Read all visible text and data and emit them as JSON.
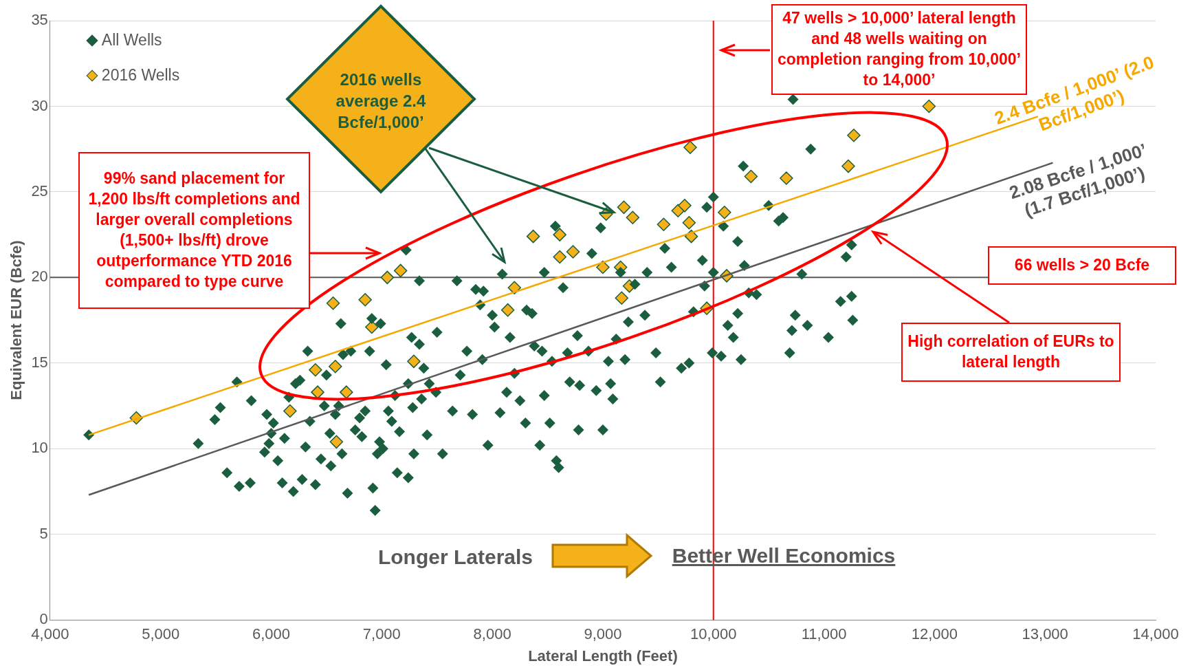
{
  "chart_data": {
    "type": "scatter",
    "xlabel": "Lateral Length (Feet)",
    "ylabel": "Equivalent EUR (Bcfe)",
    "xlim": [
      4000,
      14000
    ],
    "xticks": [
      {
        "value": 4000,
        "label": "4,000"
      },
      {
        "value": 5000,
        "label": "5,000"
      },
      {
        "value": 6000,
        "label": "6,000"
      },
      {
        "value": 7000,
        "label": "7,000"
      },
      {
        "value": 8000,
        "label": "8,000"
      },
      {
        "value": 9000,
        "label": "9,000"
      },
      {
        "value": 10000,
        "label": "10,000"
      },
      {
        "value": 11000,
        "label": "11,000"
      },
      {
        "value": 12000,
        "label": "12,000"
      },
      {
        "value": 13000,
        "label": "13,000"
      },
      {
        "value": 14000,
        "label": "14,000"
      }
    ],
    "ylim": [
      0,
      35
    ],
    "yticks": [
      0,
      5,
      10,
      15,
      20,
      25,
      30,
      35
    ],
    "grid": "y",
    "legend": "top left",
    "marker": "diamond",
    "series": [
      {
        "name": "All Wells",
        "color": "#1b5e3f",
        "x": [
          4350,
          5340,
          5490,
          5540,
          5600,
          5690,
          5710,
          5810,
          5820,
          5940,
          5960,
          5980,
          6000,
          6020,
          6060,
          6100,
          6120,
          6160,
          6200,
          6220,
          6260,
          6280,
          6310,
          6350,
          6330,
          6400,
          6450,
          6480,
          6500,
          6530,
          6540,
          6580,
          6610,
          6630,
          6640,
          6650,
          6690,
          6720,
          6760,
          6800,
          6820,
          6850,
          6890,
          6910,
          6920,
          6940,
          6960,
          6980,
          6990,
          7010,
          7040,
          7060,
          7090,
          7120,
          7140,
          7160,
          7220,
          7240,
          7240,
          7270,
          7280,
          7290,
          7340,
          7340,
          7360,
          7380,
          7410,
          7430,
          7490,
          7500,
          7550,
          7640,
          7680,
          7710,
          7770,
          7820,
          7850,
          7890,
          7910,
          7920,
          7960,
          8000,
          8020,
          8070,
          8090,
          8130,
          8160,
          8200,
          8250,
          8300,
          8310,
          8360,
          8380,
          8430,
          8450,
          8470,
          8470,
          8520,
          8540,
          8570,
          8580,
          8600,
          8640,
          8680,
          8700,
          8770,
          8780,
          8790,
          8870,
          8900,
          8940,
          8980,
          9000,
          9050,
          9070,
          9090,
          9120,
          9160,
          9200,
          9230,
          9290,
          9380,
          9400,
          9480,
          9520,
          9560,
          9620,
          9710,
          9780,
          9820,
          9900,
          9920,
          9940,
          10000,
          10000,
          9990,
          10070,
          10090,
          10130,
          10180,
          10220,
          10220,
          10250,
          10270,
          10280,
          10320,
          10390,
          10500,
          10590,
          10630,
          10690,
          10710,
          10720,
          10740,
          10800,
          10850,
          10880,
          11040,
          11150,
          11200,
          11250,
          11250,
          11260
        ],
        "values": [
          10.8,
          10.3,
          11.7,
          12.4,
          8.6,
          13.9,
          7.8,
          8.0,
          12.8,
          9.8,
          12.0,
          10.3,
          10.9,
          11.5,
          9.3,
          8.0,
          10.6,
          13.0,
          7.5,
          13.8,
          14.0,
          8.2,
          10.1,
          11.6,
          15.7,
          7.9,
          9.4,
          12.5,
          14.3,
          10.9,
          9.0,
          12.0,
          12.5,
          17.3,
          9.7,
          15.5,
          7.4,
          15.7,
          11.1,
          11.8,
          10.7,
          12.2,
          15.7,
          17.6,
          7.7,
          6.4,
          9.7,
          10.4,
          17.3,
          10.0,
          14.9,
          12.2,
          11.6,
          13.1,
          8.6,
          11.0,
          21.6,
          8.3,
          13.8,
          16.5,
          12.4,
          9.7,
          19.8,
          16.1,
          12.9,
          14.7,
          10.8,
          13.8,
          13.3,
          16.8,
          9.7,
          12.2,
          19.8,
          14.3,
          15.7,
          12.0,
          19.3,
          18.4,
          15.2,
          19.2,
          10.2,
          17.8,
          17.1,
          12.1,
          20.2,
          13.3,
          16.5,
          14.4,
          12.8,
          11.5,
          18.1,
          17.9,
          16.0,
          10.2,
          15.7,
          20.3,
          13.1,
          11.5,
          15.1,
          23.0,
          9.3,
          8.9,
          19.4,
          15.6,
          13.9,
          16.6,
          11.1,
          13.7,
          15.7,
          21.4,
          13.4,
          22.9,
          11.1,
          15.1,
          13.8,
          12.9,
          16.4,
          20.3,
          15.2,
          17.4,
          19.6,
          17.8,
          20.3,
          15.6,
          13.9,
          21.7,
          20.6,
          14.7,
          15.0,
          18.0,
          21.0,
          19.5,
          24.1,
          24.7,
          20.3,
          15.6,
          15.4,
          23.0,
          17.2,
          16.5,
          17.9,
          22.1,
          15.2,
          26.5,
          20.7,
          19.1,
          19.0,
          24.2,
          23.3,
          23.5,
          15.6,
          16.9,
          30.4,
          17.8,
          20.2,
          17.2,
          27.5,
          16.5,
          18.6,
          21.2,
          18.9,
          21.9,
          17.5
        ]
      },
      {
        "name": "2016 Wells",
        "color": "#f5b11a",
        "x": [
          4780,
          6170,
          6400,
          6420,
          6560,
          6580,
          6590,
          6680,
          6850,
          6910,
          7050,
          7170,
          7290,
          8140,
          8200,
          8370,
          8610,
          8610,
          8730,
          9000,
          9030,
          9160,
          9190,
          9170,
          9240,
          9270,
          9550,
          9680,
          9740,
          9780,
          9800,
          9790,
          9940,
          10100,
          10120,
          10340,
          10660,
          11220,
          11270,
          11950
        ],
        "values": [
          11.8,
          12.2,
          14.6,
          13.3,
          18.5,
          14.8,
          10.4,
          13.3,
          18.7,
          17.1,
          20.0,
          20.4,
          15.1,
          18.1,
          19.4,
          22.4,
          21.2,
          22.5,
          21.5,
          20.6,
          23.7,
          20.6,
          24.1,
          18.8,
          19.5,
          23.5,
          23.1,
          23.9,
          24.2,
          23.2,
          22.4,
          27.6,
          18.2,
          23.8,
          20.1,
          25.9,
          25.8,
          26.5,
          28.3,
          30.0
        ]
      },
      {
        "name": "2.4 Bcfe / 1,000’ (2.0 Bcf/1,000’)",
        "type": "line",
        "marker": "none",
        "color": "#f5a800",
        "x": [
          4350,
          12935
        ],
        "values": [
          10.8,
          29.4
        ]
      },
      {
        "name": "2.08 Bcfe / 1,000’ (1.7 Bcf/1,000’)",
        "type": "line",
        "marker": "none",
        "color": "#595959",
        "x": [
          4350,
          13070
        ],
        "values": [
          7.3,
          26.7
        ]
      }
    ],
    "ref_lines": [
      {
        "axis": "y",
        "value": 20,
        "color": "#595959"
      },
      {
        "axis": "x",
        "value": 10000,
        "color": "#ff0000"
      }
    ],
    "annotations": [
      "47 wells > 10,000’ lateral length and 48 wells waiting on completion ranging from 10,000’ to 14,000’",
      {
        "text": "2016 wells average 2.4 Bcfe/1,000’",
        "x": 9100,
        "y": 23.8
      },
      "99% sand placement for 1,200 lbs/ft completions and larger overall completions (1,500+ lbs/ft) drove outperformance YTD 2016 compared to type curve",
      "66 wells > 20 Bcfe",
      "High correlation of EURs to lateral length",
      "Longer Laterals",
      "Better Well Economics"
    ]
  }
}
